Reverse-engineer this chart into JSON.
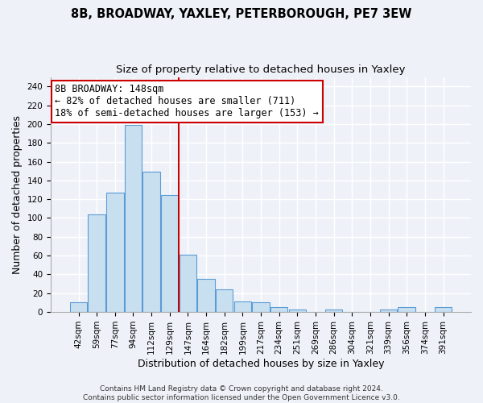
{
  "title": "8B, BROADWAY, YAXLEY, PETERBOROUGH, PE7 3EW",
  "subtitle": "Size of property relative to detached houses in Yaxley",
  "xlabel": "Distribution of detached houses by size in Yaxley",
  "ylabel": "Number of detached properties",
  "bar_labels": [
    "42sqm",
    "59sqm",
    "77sqm",
    "94sqm",
    "112sqm",
    "129sqm",
    "147sqm",
    "164sqm",
    "182sqm",
    "199sqm",
    "217sqm",
    "234sqm",
    "251sqm",
    "269sqm",
    "286sqm",
    "304sqm",
    "321sqm",
    "339sqm",
    "356sqm",
    "374sqm",
    "391sqm"
  ],
  "bar_values": [
    10,
    104,
    127,
    199,
    149,
    124,
    61,
    35,
    24,
    11,
    10,
    5,
    3,
    0,
    3,
    0,
    0,
    3,
    5,
    0,
    5
  ],
  "bar_color": "#c8dff0",
  "bar_edge_color": "#5b9bd5",
  "vline_index": 6,
  "vline_color": "#cc0000",
  "annotation_line1": "8B BROADWAY: 148sqm",
  "annotation_line2": "← 82% of detached houses are smaller (711)",
  "annotation_line3": "18% of semi-detached houses are larger (153) →",
  "annotation_box_color": "#ffffff",
  "annotation_box_edge": "#cc0000",
  "ylim": [
    0,
    250
  ],
  "yticks": [
    0,
    20,
    40,
    60,
    80,
    100,
    120,
    140,
    160,
    180,
    200,
    220,
    240
  ],
  "footer1": "Contains HM Land Registry data © Crown copyright and database right 2024.",
  "footer2": "Contains public sector information licensed under the Open Government Licence v3.0.",
  "bg_color": "#eef2f8",
  "grid_color": "#ffffff",
  "title_fontsize": 10.5,
  "subtitle_fontsize": 9.5,
  "axis_label_fontsize": 9,
  "tick_fontsize": 7.5,
  "footer_fontsize": 6.5,
  "annotation_fontsize": 8.5
}
